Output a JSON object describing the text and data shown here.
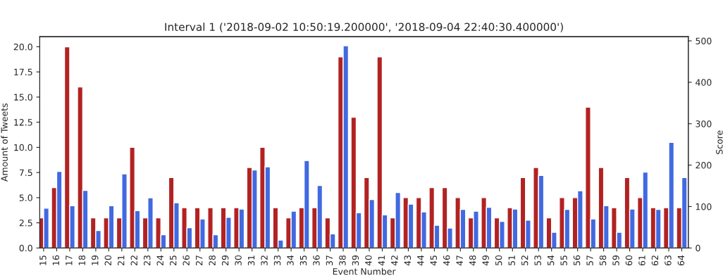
{
  "chart_data": {
    "type": "bar",
    "title": "Interval 1 ('2018-09-02 10:50:19.200000', '2018-09-04 22:40:30.400000')",
    "xlabel": "Event Number",
    "ylabel": "Amount of Tweets",
    "y2label": "Score",
    "categories": [
      "15",
      "16",
      "17",
      "18",
      "19",
      "20",
      "21",
      "22",
      "23",
      "24",
      "25",
      "26",
      "27",
      "28",
      "29",
      "30",
      "31",
      "32",
      "33",
      "34",
      "35",
      "36",
      "37",
      "38",
      "39",
      "40",
      "41",
      "42",
      "43",
      "44",
      "45",
      "46",
      "47",
      "48",
      "49",
      "50",
      "51",
      "52",
      "53",
      "54",
      "55",
      "56",
      "57",
      "58",
      "59",
      "60",
      "61",
      "62",
      "63",
      "64"
    ],
    "series": [
      {
        "color": "#b22222",
        "values": [
          3,
          6,
          20,
          16,
          3,
          3,
          3,
          10,
          3,
          3,
          7,
          4,
          4,
          4,
          4,
          4,
          8,
          10,
          4,
          3,
          4,
          4,
          3,
          19,
          13,
          7,
          19,
          3,
          5,
          5,
          6,
          6,
          5,
          3,
          5,
          3,
          4,
          7,
          8,
          3,
          5,
          5,
          14,
          8,
          4,
          7,
          5,
          4,
          4,
          4
        ]
      },
      {
        "color": "#4169e1",
        "axis": "y2",
        "values": [
          96,
          185,
          102,
          139,
          42,
          102,
          179,
          90,
          121,
          32,
          109,
          49,
          70,
          32,
          74,
          94,
          188,
          196,
          19,
          89,
          211,
          151,
          34,
          488,
          85,
          117,
          80,
          134,
          106,
          87,
          55,
          48,
          93,
          89,
          98,
          64,
          94,
          67,
          175,
          38,
          93,
          138,
          70,
          102,
          38,
          94,
          183,
          93,
          255,
          170
        ]
      }
    ],
    "ylim": [
      0,
      21
    ],
    "yticks": [
      {
        "value": 0,
        "label": "0.0"
      },
      {
        "value": 2.5,
        "label": "2.5"
      },
      {
        "value": 5,
        "label": "5.0"
      },
      {
        "value": 7.5,
        "label": "7.5"
      },
      {
        "value": 10,
        "label": "10.0"
      },
      {
        "value": 12.5,
        "label": "12.5"
      },
      {
        "value": 15,
        "label": "15.0"
      },
      {
        "value": 17.5,
        "label": "17.5"
      },
      {
        "value": 20,
        "label": "20.0"
      }
    ],
    "y2lim": [
      0,
      510
    ],
    "y2ticks": [
      0,
      100,
      200,
      300,
      400,
      500
    ],
    "grid": false,
    "legend": false
  }
}
